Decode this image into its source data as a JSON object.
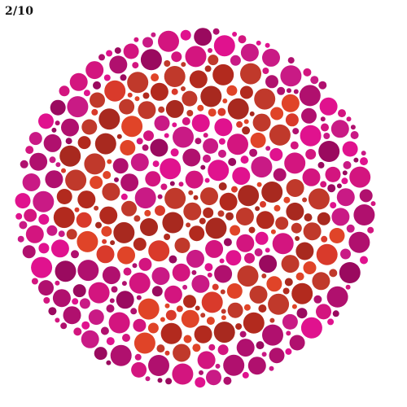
{
  "quiz": {
    "progress_label": "2/10",
    "current": 2,
    "total": 10
  },
  "plate": {
    "type": "ishihara-color-blindness-test",
    "colors": {
      "background_dots": [
        "#e0128e",
        "#c91a85",
        "#b0106e",
        "#9a0a5f",
        "#d3157f"
      ],
      "figure_dots": [
        "#d93a2b",
        "#c0392b",
        "#a8291f",
        "#e04428",
        "#b22a1e"
      ]
    }
  }
}
